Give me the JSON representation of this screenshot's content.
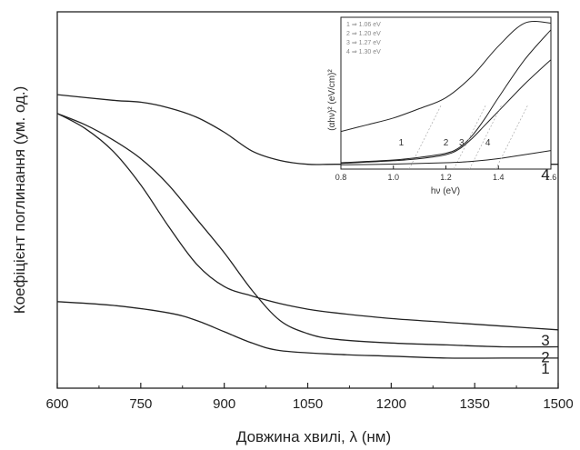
{
  "chart_data": [
    {
      "type": "line",
      "xlabel": "Довжина хвилі, λ (нм)",
      "ylabel": "Коефіцієнт поглинання (ум. од.)",
      "xlim": [
        600,
        1500
      ],
      "ylim": [
        0,
        1
      ],
      "x_ticks": [
        "600",
        "750",
        "900",
        "1050",
        "1200",
        "1350",
        "1500"
      ],
      "x_tick_values": [
        600,
        750,
        900,
        1050,
        1200,
        1350,
        1500
      ],
      "y_ticks_labeled": false,
      "grid": false,
      "series": [
        {
          "name": "1",
          "x": [
            600,
            700,
            800,
            850,
            900,
            950,
            1000,
            1100,
            1200,
            1300,
            1400,
            1500
          ],
          "y": [
            0.23,
            0.22,
            0.2,
            0.18,
            0.15,
            0.12,
            0.1,
            0.09,
            0.085,
            0.08,
            0.08,
            0.08
          ]
        },
        {
          "name": "2",
          "x": [
            600,
            650,
            700,
            750,
            800,
            850,
            900,
            950,
            1000,
            1050,
            1100,
            1200,
            1300,
            1400,
            1500
          ],
          "y": [
            0.73,
            0.7,
            0.66,
            0.61,
            0.54,
            0.45,
            0.36,
            0.26,
            0.18,
            0.145,
            0.13,
            0.12,
            0.115,
            0.11,
            0.11
          ]
        },
        {
          "name": "3",
          "x": [
            600,
            650,
            700,
            750,
            800,
            850,
            900,
            950,
            1000,
            1050,
            1100,
            1200,
            1300,
            1400,
            1500
          ],
          "y": [
            0.73,
            0.69,
            0.63,
            0.54,
            0.43,
            0.33,
            0.27,
            0.245,
            0.225,
            0.21,
            0.2,
            0.185,
            0.175,
            0.165,
            0.155
          ]
        },
        {
          "name": "4",
          "x": [
            600,
            700,
            750,
            800,
            850,
            900,
            950,
            1000,
            1050,
            1100,
            1200,
            1300,
            1400,
            1500
          ],
          "y": [
            0.78,
            0.765,
            0.76,
            0.745,
            0.72,
            0.68,
            0.63,
            0.605,
            0.595,
            0.595,
            0.595,
            0.595,
            0.595,
            0.595
          ]
        }
      ]
    },
    {
      "type": "line",
      "inset": true,
      "xlabel": "hν (eV)",
      "ylabel": "(αhν)² (eV/cm)²",
      "xlim": [
        0.8,
        1.6
      ],
      "x_ticks": [
        "0.8",
        "1.0",
        "1.2",
        "1.4",
        "1.6"
      ],
      "x_tick_values": [
        0.8,
        1.0,
        1.2,
        1.4,
        1.6
      ],
      "legend_position": "top-left",
      "legend": [
        "1 ⇒ 1.06 eV",
        "2 ⇒ 1.20 eV",
        "3 ⇒ 1.27 eV",
        "4 ⇒ 1.30 eV"
      ],
      "curve_labels": [
        "1",
        "2",
        "3",
        "4"
      ],
      "series": [
        {
          "name": "1",
          "x": [
            0.8,
            0.9,
            1.0,
            1.1,
            1.2,
            1.3,
            1.4,
            1.5,
            1.6
          ],
          "y": [
            0.25,
            0.3,
            0.35,
            0.42,
            0.5,
            0.66,
            0.88,
            1.05,
            1.05
          ]
        },
        {
          "name": "2",
          "x": [
            0.8,
            0.9,
            1.0,
            1.1,
            1.2,
            1.25,
            1.3,
            1.35,
            1.4,
            1.5,
            1.6
          ],
          "y": [
            0.02,
            0.03,
            0.04,
            0.06,
            0.09,
            0.13,
            0.22,
            0.35,
            0.5,
            0.78,
            1.0
          ]
        },
        {
          "name": "3",
          "x": [
            0.8,
            0.9,
            1.0,
            1.1,
            1.2,
            1.25,
            1.3,
            1.35,
            1.4,
            1.5,
            1.6
          ],
          "y": [
            0.015,
            0.025,
            0.035,
            0.05,
            0.08,
            0.12,
            0.2,
            0.3,
            0.4,
            0.6,
            0.78
          ]
        },
        {
          "name": "4",
          "x": [
            0.8,
            1.0,
            1.2,
            1.3,
            1.4,
            1.5,
            1.6
          ],
          "y": [
            0.005,
            0.01,
            0.02,
            0.03,
            0.05,
            0.08,
            0.11
          ]
        }
      ]
    }
  ]
}
